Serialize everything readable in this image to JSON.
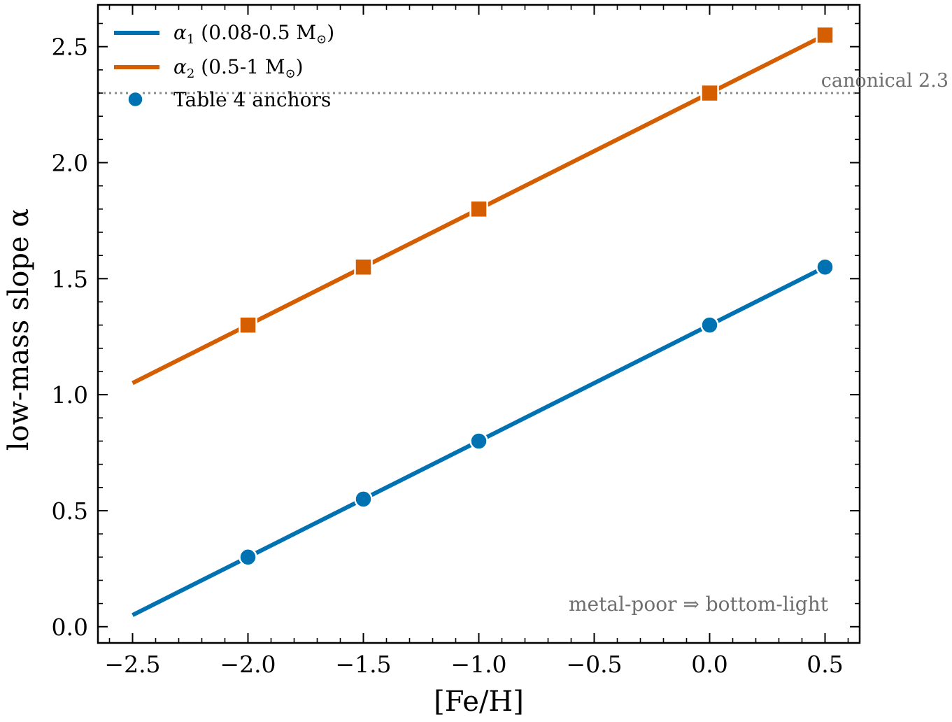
{
  "chart_data": {
    "type": "line",
    "xlabel": "[Fe/H]",
    "ylabel": "low-mass slope α",
    "xlim": [
      -2.65,
      0.65
    ],
    "ylim": [
      -0.07,
      2.68
    ],
    "xticks": [
      -2.5,
      -2.0,
      -1.5,
      -1.0,
      -0.5,
      0.0,
      0.5
    ],
    "xtick_labels": [
      "−2.5",
      "−2.0",
      "−1.5",
      "−1.0",
      "−0.5",
      "0.0",
      "0.5"
    ],
    "yticks": [
      0.0,
      0.5,
      1.0,
      1.5,
      2.0,
      2.5
    ],
    "ytick_labels": [
      "0.0",
      "0.5",
      "1.0",
      "1.5",
      "2.0",
      "2.5"
    ],
    "series": [
      {
        "name": "α1 (0.08-0.5 M☉)",
        "color": "#0072b2",
        "line": {
          "x": [
            -2.5,
            0.5
          ],
          "y": [
            0.05,
            1.55
          ]
        },
        "markers": {
          "shape": "circle",
          "x": [
            -2.0,
            -1.5,
            -1.0,
            0.0,
            0.5
          ],
          "y": [
            0.3,
            0.55,
            0.8,
            1.3,
            1.55
          ]
        }
      },
      {
        "name": "α2 (0.5-1 M☉)",
        "color": "#d55e00",
        "line": {
          "x": [
            -2.5,
            0.5
          ],
          "y": [
            1.05,
            2.55
          ]
        },
        "markers": {
          "shape": "square",
          "x": [
            -2.0,
            -1.5,
            -1.0,
            0.0,
            0.5
          ],
          "y": [
            1.3,
            1.55,
            1.8,
            2.3,
            2.55
          ]
        }
      }
    ],
    "legend": {
      "position": "top-left",
      "entries": [
        {
          "label_main": "α",
          "label_sub": "1",
          "label_rest": " (0.08-0.5 M",
          "label_sun_sub": "⊙",
          "label_end": ")",
          "kind": "line",
          "color": "#0072b2"
        },
        {
          "label_main": "α",
          "label_sub": "2",
          "label_rest": " (0.5-1 M",
          "label_sun_sub": "⊙",
          "label_end": ")",
          "kind": "line",
          "color": "#d55e00"
        },
        {
          "label": "Table 4 anchors",
          "kind": "marker",
          "color": "#0072b2"
        }
      ]
    },
    "reference_line": {
      "y": 2.3,
      "style": "dotted",
      "color": "#8c8c8c",
      "label": "canonical 2.3"
    },
    "annotations": [
      {
        "text": "metal-poor ⇒ bottom-light",
        "position": "bottom-right"
      }
    ],
    "grid": false
  }
}
